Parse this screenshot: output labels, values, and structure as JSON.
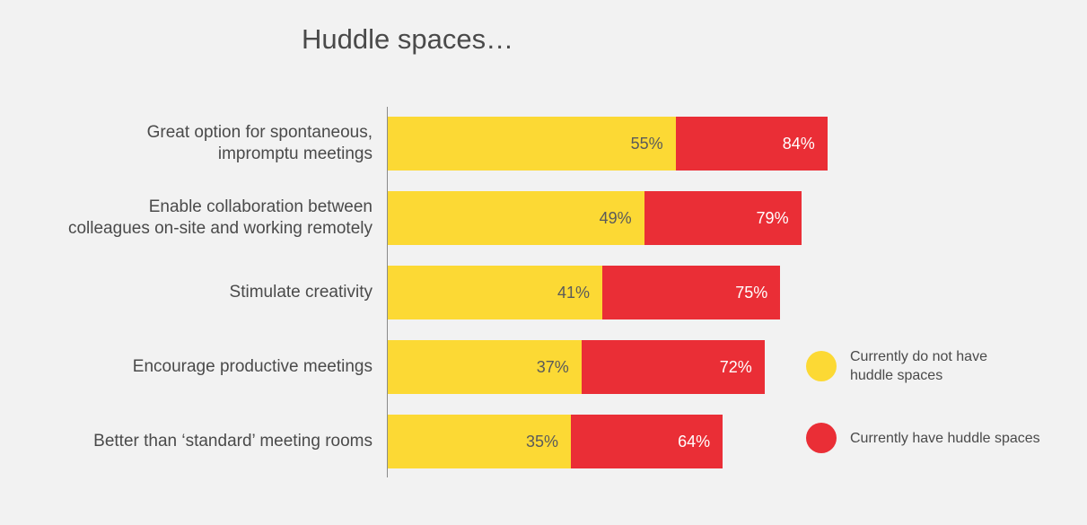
{
  "chart_data": {
    "type": "bar",
    "orientation": "horizontal",
    "stacked": true,
    "title": "Huddle spaces…",
    "categories": [
      "Great option for spontaneous,\nimpromptu meetings",
      "Enable collaboration between\ncolleagues on-site and working remotely",
      "Stimulate creativity",
      "Encourage productive meetings",
      "Better than ‘standard’ meeting rooms"
    ],
    "series": [
      {
        "name": "Currently do not have huddle spaces",
        "color": "#fcd934",
        "label_color": "#5a5a5a",
        "values": [
          55,
          49,
          41,
          37,
          35
        ],
        "labels": [
          "55%",
          "49%",
          "41%",
          "37%",
          "35%"
        ]
      },
      {
        "name": "Currently have huddle spaces",
        "color": "#ea2e36",
        "label_color": "#ffffff",
        "values": [
          84,
          79,
          75,
          72,
          64
        ],
        "labels": [
          "84%",
          "79%",
          "75%",
          "72%",
          "64%"
        ]
      }
    ],
    "legend": {
      "position": "right",
      "items": [
        {
          "label": "Currently do not have\nhuddle spaces",
          "color": "#fcd934"
        },
        {
          "label": "Currently have huddle spaces",
          "color": "#ea2e36"
        }
      ]
    }
  }
}
